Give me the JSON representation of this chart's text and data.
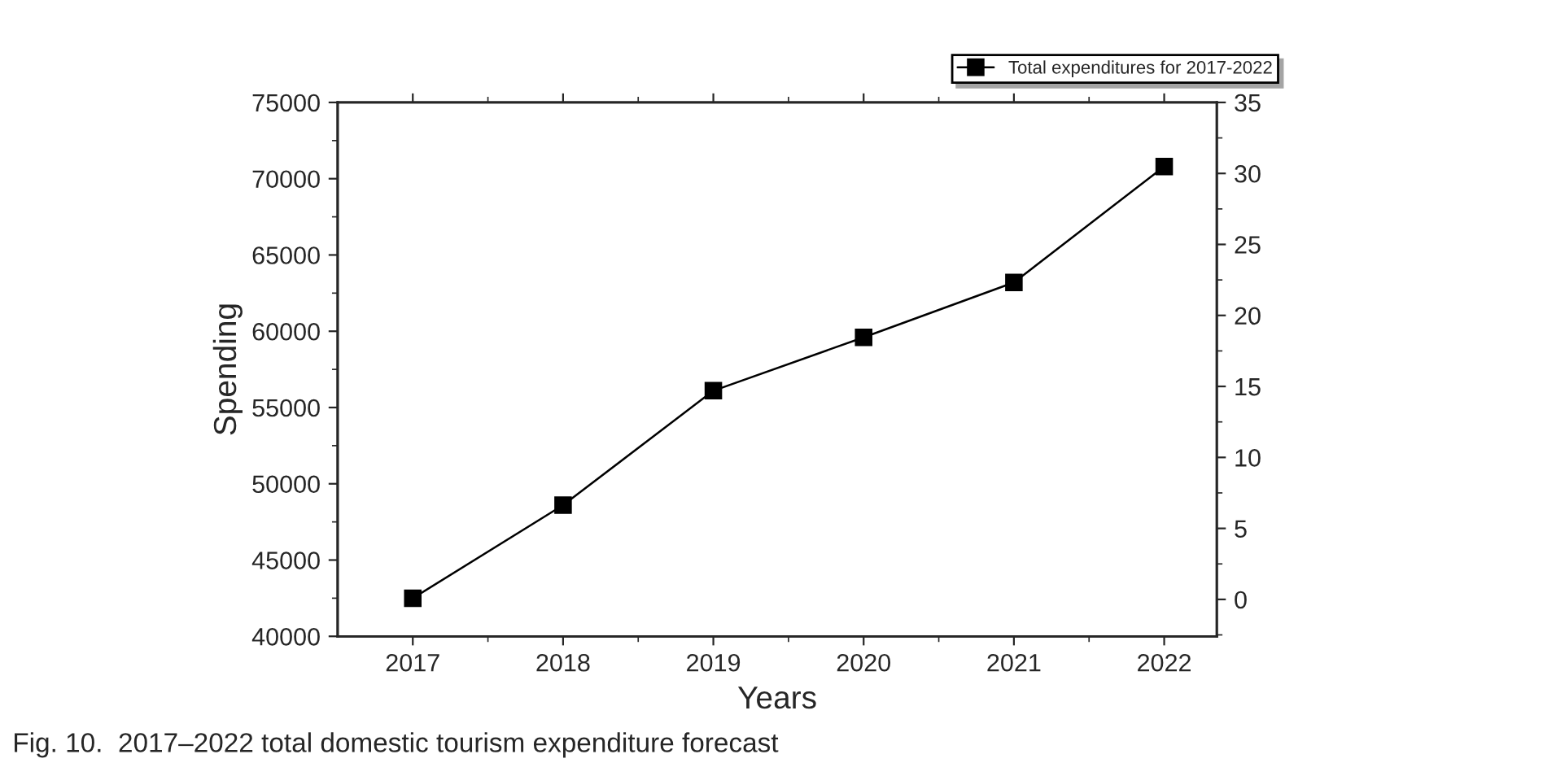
{
  "chart_data": {
    "type": "line",
    "xlabel": "Years",
    "ylabel": "Spending",
    "categories": [
      "2017",
      "2018",
      "2019",
      "2020",
      "2021",
      "2022"
    ],
    "series": [
      {
        "name": "Total expenditures for 2017-2022",
        "color": "#000000",
        "values": [
          42500,
          48600,
          56100,
          59600,
          63200,
          70800
        ]
      }
    ],
    "ylim": [
      40000,
      75000
    ],
    "yticks": [
      40000,
      45000,
      50000,
      55000,
      60000,
      65000,
      70000,
      75000
    ],
    "y2lim": [
      -2.6,
      35
    ],
    "y2ticks": [
      0,
      5,
      10,
      15,
      20,
      25,
      30,
      35
    ],
    "marker": "square",
    "line_style": "solid",
    "grid": false,
    "legend": "top right",
    "annotations": [
      "Fig. 10.  2017–2022 total domestic tourism expenditure forecast"
    ]
  }
}
